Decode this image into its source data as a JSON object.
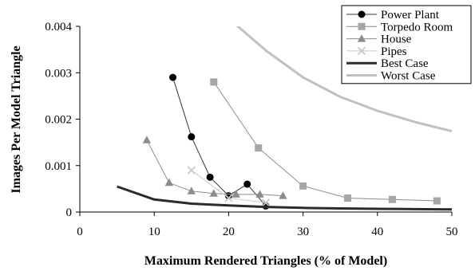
{
  "chart_data": {
    "type": "line",
    "xlabel": "Maximum Rendered Triangles (% of Model)",
    "ylabel": "Images Per Model Triangle",
    "xlim": [
      0,
      50
    ],
    "ylim": [
      0,
      0.004
    ],
    "x_ticks": [
      "0",
      "10",
      "20",
      "30",
      "40",
      "50"
    ],
    "y_ticks": [
      "0",
      "0.001",
      "0.002",
      "0.003",
      "0.004"
    ],
    "grid": false,
    "legend_position": "top-right",
    "series": [
      {
        "name": "Power Plant",
        "marker": "circle",
        "color": "#000000",
        "line_color": "#333333",
        "points": [
          [
            12.5,
            0.0029
          ],
          [
            15,
            0.00162
          ],
          [
            17.5,
            0.00075
          ],
          [
            20,
            0.00035
          ],
          [
            22.5,
            0.0006
          ],
          [
            25,
            0.00013
          ]
        ]
      },
      {
        "name": "Torpedo Room",
        "marker": "square",
        "color": "#a6a6a6",
        "line_color": "#8c8c8c",
        "points": [
          [
            18,
            0.0028
          ],
          [
            24,
            0.00138
          ],
          [
            30,
            0.00056
          ],
          [
            36,
            0.0003
          ],
          [
            42,
            0.00027
          ],
          [
            48,
            0.00024
          ]
        ]
      },
      {
        "name": "House",
        "marker": "triangle",
        "color": "#8c8c8c",
        "line_color": "#8c8c8c",
        "points": [
          [
            9,
            0.00155
          ],
          [
            12,
            0.00063
          ],
          [
            15,
            0.00045
          ],
          [
            18,
            0.0004
          ],
          [
            21,
            0.00038
          ],
          [
            24.2,
            0.00038
          ],
          [
            27.3,
            0.00035
          ]
        ]
      },
      {
        "name": "Pipes",
        "marker": "cross",
        "color": "#c8c8c8",
        "line_color": "#c8c8c8",
        "points": [
          [
            15,
            0.0009
          ],
          [
            20,
            0.0003
          ],
          [
            25,
            0.0002
          ]
        ]
      },
      {
        "name": "Best Case",
        "marker": "none",
        "color": "#2b2b2b",
        "line_color": "#2b2b2b",
        "line_width": 3,
        "points": [
          [
            5,
            0.00055
          ],
          [
            10,
            0.00027
          ],
          [
            15,
            0.00018
          ],
          [
            20,
            0.00014
          ],
          [
            25,
            0.00011
          ],
          [
            30,
            9e-05
          ],
          [
            35,
            7.8e-05
          ],
          [
            40,
            6.8e-05
          ],
          [
            45,
            6.1e-05
          ],
          [
            50,
            5.5e-05
          ]
        ]
      },
      {
        "name": "Worst Case",
        "marker": "none",
        "color": "#c0c0c0",
        "line_color": "#c0c0c0",
        "line_width": 3,
        "points": [
          [
            20.5,
            0.0041
          ],
          [
            25,
            0.00348
          ],
          [
            30,
            0.0029
          ],
          [
            35,
            0.00248
          ],
          [
            40,
            0.00218
          ],
          [
            45,
            0.00194
          ],
          [
            50,
            0.00174
          ]
        ]
      }
    ]
  }
}
